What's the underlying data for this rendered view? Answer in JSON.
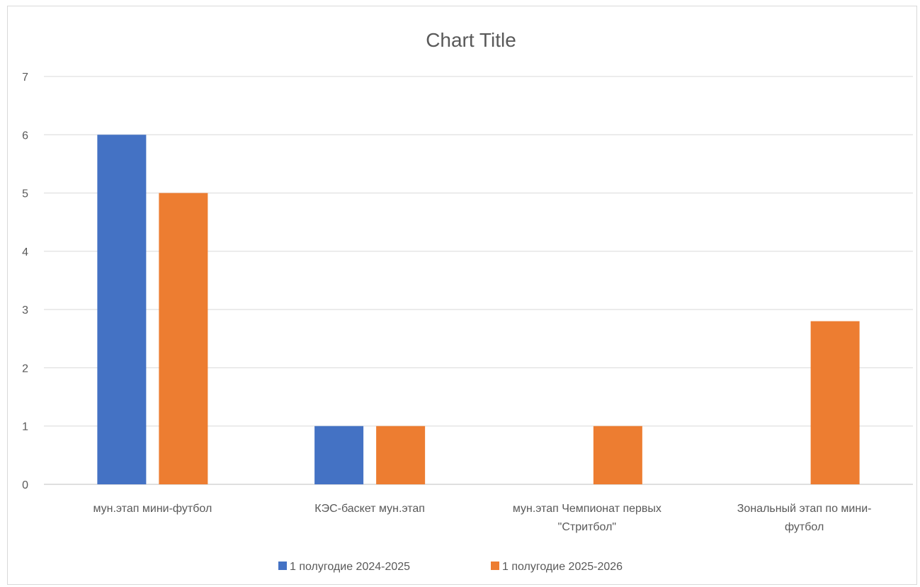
{
  "chart_data": {
    "type": "bar",
    "title": "Chart Title",
    "categories": [
      [
        "мун.этап мини-футбол"
      ],
      [
        "КЭС-баскет мун.этап"
      ],
      [
        "мун.этап Чемпионат первых",
        "\"Стритбол\""
      ],
      [
        "Зональный этап по мини-",
        "футбол"
      ]
    ],
    "series": [
      {
        "name": "1 полугодие 2024-2025",
        "color": "#4472C4",
        "values": [
          6,
          1,
          0,
          0
        ]
      },
      {
        "name": "1 полугодие 2025-2026",
        "color": "#ED7D31",
        "values": [
          5,
          1,
          1,
          2.8
        ]
      }
    ],
    "ylim": [
      0,
      7
    ],
    "yticks": [
      "0",
      "1",
      "2",
      "3",
      "4",
      "5",
      "6",
      "7"
    ],
    "grid": true,
    "legend": "bottom"
  }
}
